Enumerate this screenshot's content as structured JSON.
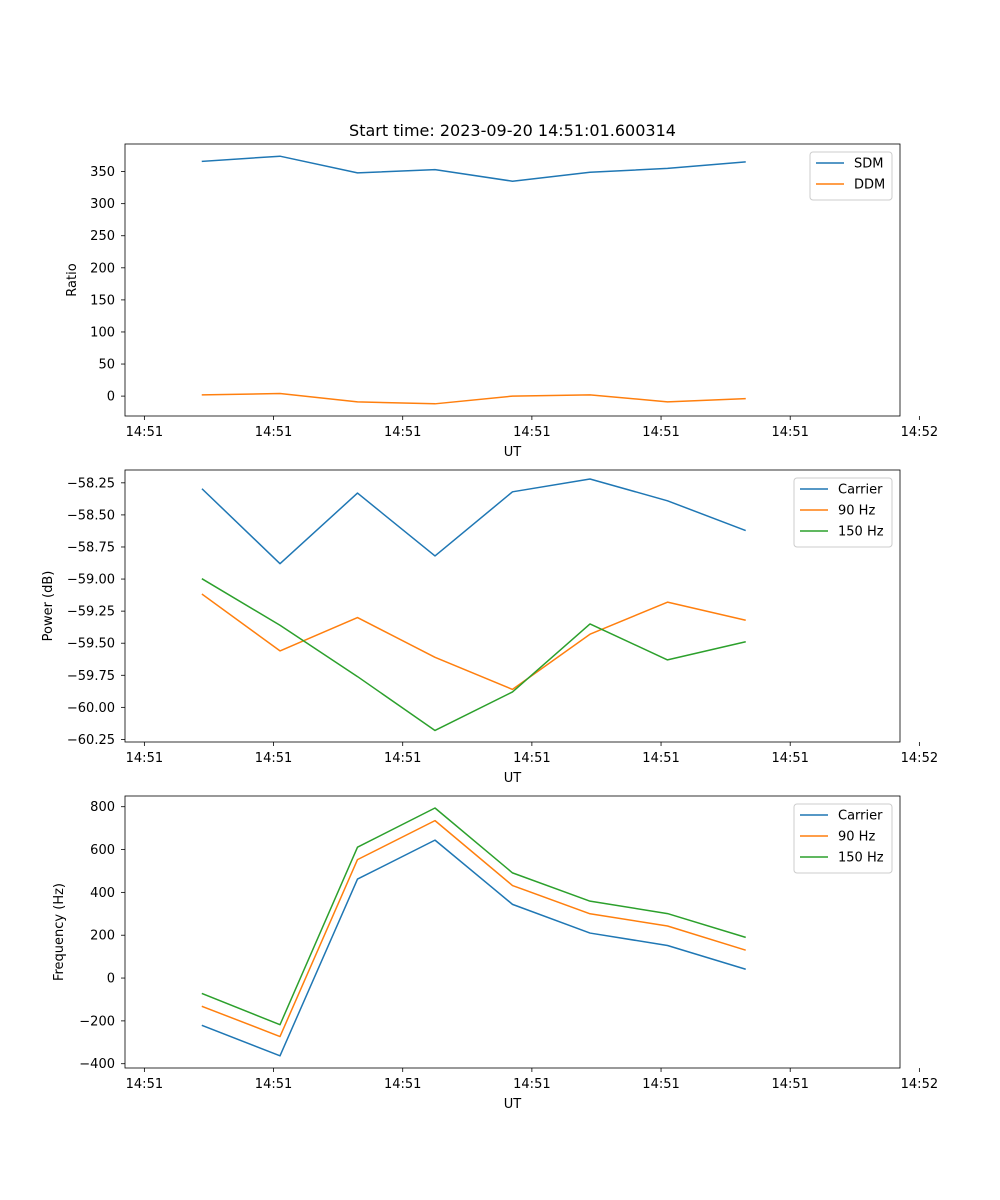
{
  "figure_title": "Start time: 2023-09-20 14:51:01.600314",
  "colors": {
    "c0": "#1f77b4",
    "c1": "#ff7f0e",
    "c2": "#2ca02c"
  },
  "chart_data": [
    {
      "type": "line",
      "title": "Start time: 2023-09-20 14:51:01.600314",
      "xlabel": "UT",
      "ylabel": "Ratio",
      "xlim": [
        -0.2,
        2.8
      ],
      "ylim": [
        -31,
        393
      ],
      "xticks": [
        -0.125,
        0.375,
        0.875,
        1.375,
        1.875,
        2.375,
        2.875
      ],
      "xtick_labels": [
        "14:51",
        "14:51",
        "14:51",
        "14:51",
        "14:51",
        "14:51",
        "14:52"
      ],
      "yticks": [
        0,
        50,
        100,
        150,
        200,
        250,
        300,
        350
      ],
      "ytick_labels": [
        "0",
        "50",
        "100",
        "150",
        "200",
        "250",
        "300",
        "350"
      ],
      "x": [
        0.1,
        0.4,
        0.7,
        1.0,
        1.3,
        1.6,
        1.9,
        2.2
      ],
      "series": [
        {
          "name": "SDM",
          "color_key": "c0",
          "values": [
            366,
            374,
            348,
            353,
            335,
            349,
            355,
            365
          ]
        },
        {
          "name": "DDM",
          "color_key": "c1",
          "values": [
            2,
            4,
            -9,
            -12,
            0,
            2,
            -9,
            -4
          ]
        }
      ],
      "legend": "top-right"
    },
    {
      "type": "line",
      "title": "",
      "xlabel": "UT",
      "ylabel": "Power (dB)",
      "xlim": [
        -0.2,
        2.8
      ],
      "ylim": [
        -60.27,
        -58.15
      ],
      "xticks": [
        -0.125,
        0.375,
        0.875,
        1.375,
        1.875,
        2.375,
        2.875
      ],
      "xtick_labels": [
        "14:51",
        "14:51",
        "14:51",
        "14:51",
        "14:51",
        "14:51",
        "14:52"
      ],
      "yticks": [
        -60.25,
        -60.0,
        -59.75,
        -59.5,
        -59.25,
        -59.0,
        -58.75,
        -58.5,
        -58.25
      ],
      "ytick_labels": [
        "−60.25",
        "−60.00",
        "−59.75",
        "−59.50",
        "−59.25",
        "−59.00",
        "−58.75",
        "−58.50",
        "−58.25"
      ],
      "x": [
        0.1,
        0.4,
        0.7,
        1.0,
        1.3,
        1.6,
        1.9,
        2.2
      ],
      "series": [
        {
          "name": "Carrier",
          "color_key": "c0",
          "values": [
            -58.3,
            -58.88,
            -58.33,
            -58.82,
            -58.32,
            -58.22,
            -58.39,
            -58.62
          ]
        },
        {
          "name": "90 Hz",
          "color_key": "c1",
          "values": [
            -59.12,
            -59.56,
            -59.3,
            -59.61,
            -59.86,
            -59.43,
            -59.18,
            -59.32
          ]
        },
        {
          "name": "150 Hz",
          "color_key": "c2",
          "values": [
            -59.0,
            -59.36,
            -59.76,
            -60.18,
            -59.88,
            -59.35,
            -59.63,
            -59.49
          ]
        }
      ],
      "legend": "top-right"
    },
    {
      "type": "line",
      "title": "",
      "xlabel": "UT",
      "ylabel": "Frequency (Hz)",
      "xlim": [
        -0.2,
        2.8
      ],
      "ylim": [
        -420,
        850
      ],
      "xticks": [
        -0.125,
        0.375,
        0.875,
        1.375,
        1.875,
        2.375,
        2.875
      ],
      "xtick_labels": [
        "14:51",
        "14:51",
        "14:51",
        "14:51",
        "14:51",
        "14:51",
        "14:52"
      ],
      "yticks": [
        -400,
        -200,
        0,
        200,
        400,
        600,
        800
      ],
      "ytick_labels": [
        "−400",
        "−200",
        "0",
        "200",
        "400",
        "600",
        "800"
      ],
      "x": [
        0.1,
        0.4,
        0.7,
        1.0,
        1.3,
        1.6,
        1.9,
        2.2
      ],
      "series": [
        {
          "name": "Carrier",
          "color_key": "c0",
          "values": [
            -222,
            -363,
            462,
            644,
            344,
            210,
            152,
            42
          ]
        },
        {
          "name": "90 Hz",
          "color_key": "c1",
          "values": [
            -133,
            -273,
            553,
            735,
            432,
            300,
            243,
            131
          ]
        },
        {
          "name": "150 Hz",
          "color_key": "c2",
          "values": [
            -73,
            -218,
            611,
            794,
            491,
            359,
            301,
            191
          ]
        }
      ],
      "legend": "top-right"
    }
  ]
}
